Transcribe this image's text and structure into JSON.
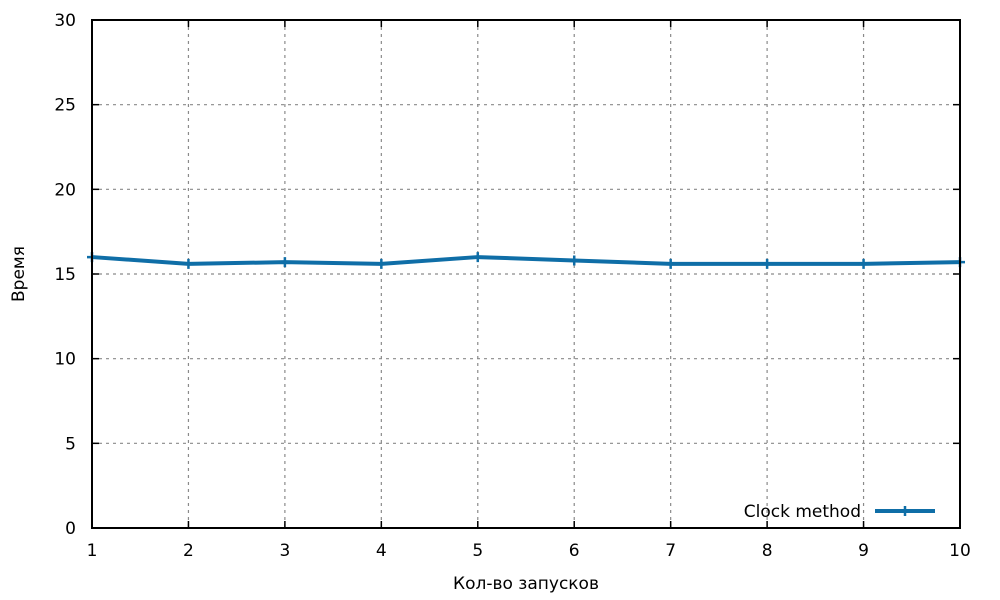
{
  "chart_data": {
    "type": "line",
    "title": "",
    "xlabel": "Кол-во запусков",
    "ylabel": "Время",
    "xlim": [
      1,
      10
    ],
    "ylim": [
      0,
      30
    ],
    "x_ticks": [
      "1",
      "2",
      "3",
      "4",
      "5",
      "6",
      "7",
      "8",
      "9",
      "10"
    ],
    "y_ticks": [
      "0",
      "5",
      "10",
      "15",
      "20",
      "25",
      "30"
    ],
    "grid": true,
    "legend_position": "bottom-right",
    "x": [
      1,
      2,
      3,
      4,
      5,
      6,
      7,
      8,
      9,
      10
    ],
    "series": [
      {
        "name": "Clock method",
        "color": "#0f6ea7",
        "values": [
          16.0,
          15.6,
          15.7,
          15.6,
          16.0,
          15.8,
          15.6,
          15.6,
          15.6,
          15.7
        ]
      }
    ]
  }
}
